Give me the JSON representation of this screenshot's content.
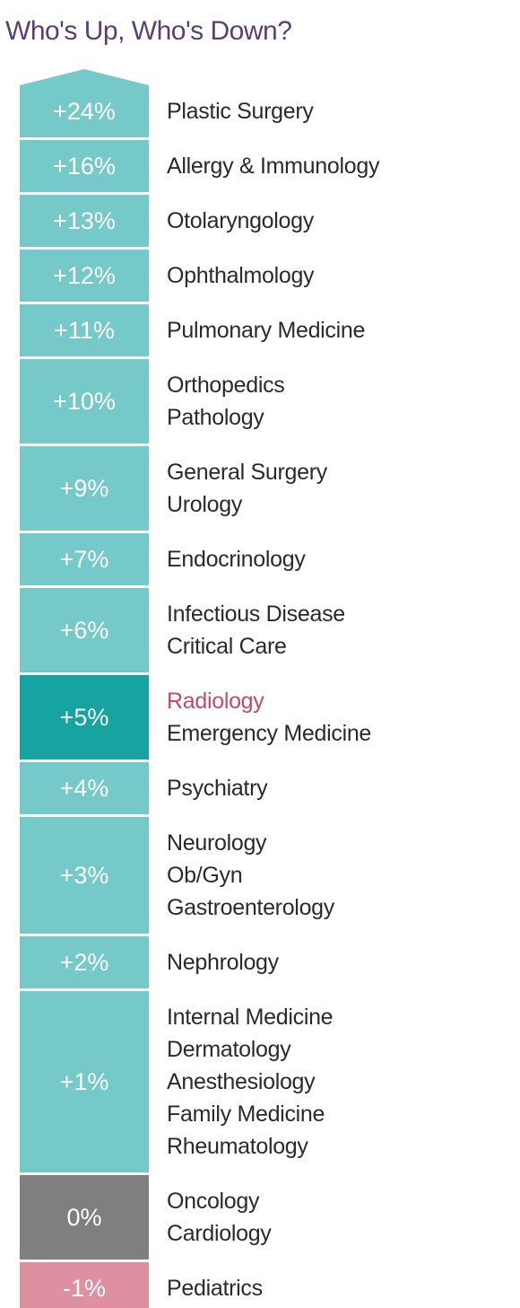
{
  "title": "Who's Up, Who's Down?",
  "colors": {
    "title": "#5b3f73",
    "positive": "#75c9c8",
    "highlight": "#17a39f",
    "neutral": "#7f7f7f",
    "negative": "#de90a1",
    "label_text": "#2a2a2a",
    "label_highlight": "#c14a6b",
    "value_text": "#ffffff"
  },
  "chart_data": {
    "type": "table",
    "title": "Who's Up, Who's Down?",
    "rows": [
      {
        "value": 24,
        "display": "+24%",
        "specialties": [
          "Plastic Surgery"
        ]
      },
      {
        "value": 16,
        "display": "+16%",
        "specialties": [
          "Allergy & Immunology"
        ]
      },
      {
        "value": 13,
        "display": "+13%",
        "specialties": [
          "Otolaryngology"
        ]
      },
      {
        "value": 12,
        "display": "+12%",
        "specialties": [
          "Ophthalmology"
        ]
      },
      {
        "value": 11,
        "display": "+11%",
        "specialties": [
          "Pulmonary Medicine"
        ]
      },
      {
        "value": 10,
        "display": "+10%",
        "specialties": [
          "Orthopedics",
          "Pathology"
        ]
      },
      {
        "value": 9,
        "display": "+9%",
        "specialties": [
          "General Surgery",
          "Urology"
        ]
      },
      {
        "value": 7,
        "display": "+7%",
        "specialties": [
          "Endocrinology"
        ]
      },
      {
        "value": 6,
        "display": "+6%",
        "specialties": [
          "Infectious Disease",
          "Critical Care"
        ]
      },
      {
        "value": 5,
        "display": "+5%",
        "specialties": [
          "Radiology",
          "Emergency Medicine"
        ],
        "highlight": "Radiology"
      },
      {
        "value": 4,
        "display": "+4%",
        "specialties": [
          "Psychiatry"
        ]
      },
      {
        "value": 3,
        "display": "+3%",
        "specialties": [
          "Neurology",
          "Ob/Gyn",
          "Gastroenterology"
        ]
      },
      {
        "value": 2,
        "display": "+2%",
        "specialties": [
          "Nephrology"
        ]
      },
      {
        "value": 1,
        "display": "+1%",
        "specialties": [
          "Internal Medicine",
          "Dermatology",
          "Anesthesiology",
          "Family Medicine",
          "Rheumatology"
        ]
      },
      {
        "value": 0,
        "display": "0%",
        "specialties": [
          "Oncology",
          "Cardiology"
        ]
      },
      {
        "value": -1,
        "display": "-1%",
        "specialties": [
          "Pediatrics"
        ]
      }
    ]
  }
}
